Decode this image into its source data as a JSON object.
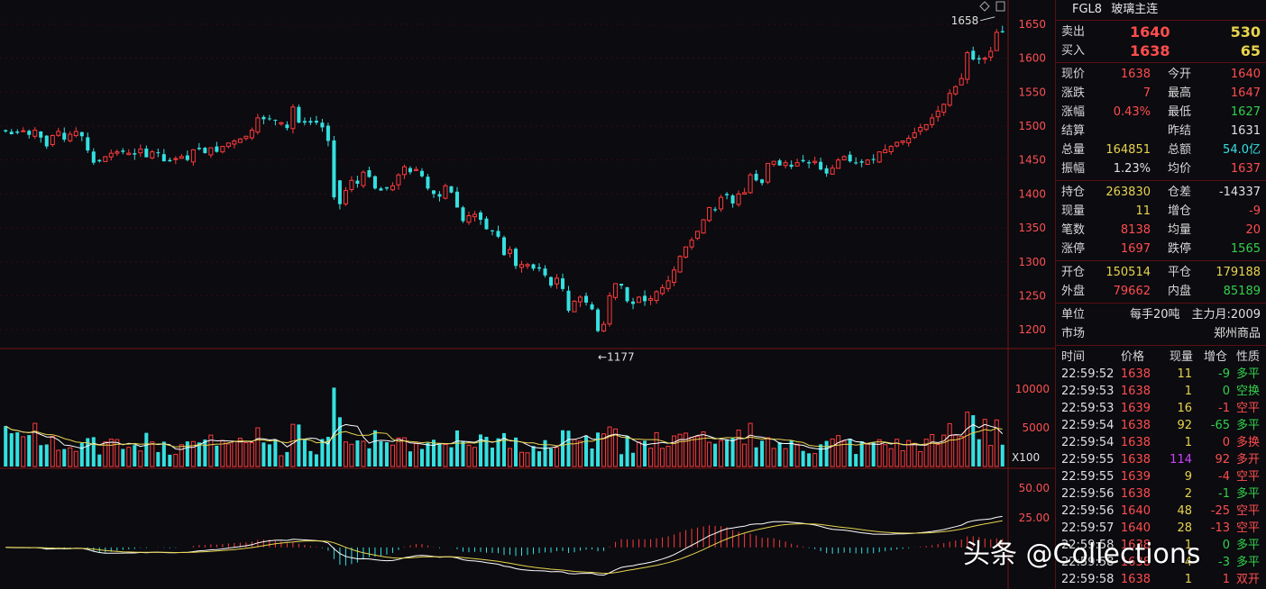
{
  "instrument": {
    "code": "FGL8",
    "name": "玻璃主连"
  },
  "quote": {
    "sell_label": "卖出",
    "sell_price": "1640",
    "sell_vol": "530",
    "buy_label": "买入",
    "buy_price": "1638",
    "buy_vol": "65"
  },
  "stats": [
    {
      "l1": "现价",
      "v1": "1638",
      "c1": "red",
      "l2": "今开",
      "v2": "1640",
      "c2": "red"
    },
    {
      "l1": "涨跌",
      "v1": "7",
      "c1": "red",
      "l2": "最高",
      "v2": "1647",
      "c2": "red"
    },
    {
      "l1": "涨幅",
      "v1": "0.43%",
      "c1": "red",
      "l2": "最低",
      "v2": "1627",
      "c2": "green"
    },
    {
      "l1": "结算",
      "v1": "",
      "c1": "white",
      "l2": "昨结",
      "v2": "1631",
      "c2": "white"
    },
    {
      "l1": "总量",
      "v1": "164851",
      "c1": "yellow",
      "l2": "总额",
      "v2": "54.0亿",
      "c2": "cyan"
    },
    {
      "l1": "振幅",
      "v1": "1.23%",
      "c1": "white",
      "l2": "均价",
      "v2": "1637",
      "c2": "red"
    }
  ],
  "stats2": [
    {
      "l1": "持仓",
      "v1": "263830",
      "c1": "yellow",
      "l2": "仓差",
      "v2": "-14337",
      "c2": "white"
    },
    {
      "l1": "现量",
      "v1": "11",
      "c1": "yellow",
      "l2": "增仓",
      "v2": "-9",
      "c2": "red"
    },
    {
      "l1": "笔数",
      "v1": "8138",
      "c1": "red",
      "l2": "均量",
      "v2": "20",
      "c2": "red"
    },
    {
      "l1": "涨停",
      "v1": "1697",
      "c1": "red",
      "l2": "跌停",
      "v2": "1565",
      "c2": "green"
    }
  ],
  "stats3": [
    {
      "l1": "开仓",
      "v1": "150514",
      "c1": "yellow",
      "l2": "平仓",
      "v2": "179188",
      "c2": "yellow"
    },
    {
      "l1": "外盘",
      "v1": "79662",
      "c1": "red",
      "l2": "内盘",
      "v2": "85189",
      "c2": "green"
    }
  ],
  "meta": {
    "unit_label": "单位",
    "unit_value": "每手20吨",
    "main_month": "主力月:2009",
    "market_label": "市场",
    "market_value": "郑州商品"
  },
  "ticks_header": {
    "time": "时间",
    "price": "价格",
    "vol": "现量",
    "oi": "增仓",
    "nature": "性质"
  },
  "ticks": [
    {
      "time": "22:59:52",
      "price": "1638",
      "pc": "red",
      "vol": "11",
      "vc": "yellow",
      "oi": "-9",
      "oc": "green",
      "nature": "多平",
      "nc": "green"
    },
    {
      "time": "22:59:53",
      "price": "1638",
      "pc": "red",
      "vol": "1",
      "vc": "yellow",
      "oi": "0",
      "oc": "green",
      "nature": "空换",
      "nc": "green"
    },
    {
      "time": "22:59:53",
      "price": "1639",
      "pc": "red",
      "vol": "16",
      "vc": "yellow",
      "oi": "-1",
      "oc": "red",
      "nature": "空平",
      "nc": "red"
    },
    {
      "time": "22:59:54",
      "price": "1638",
      "pc": "red",
      "vol": "92",
      "vc": "yellow",
      "oi": "-65",
      "oc": "green",
      "nature": "多平",
      "nc": "green"
    },
    {
      "time": "22:59:54",
      "price": "1638",
      "pc": "red",
      "vol": "1",
      "vc": "yellow",
      "oi": "0",
      "oc": "red",
      "nature": "多换",
      "nc": "red"
    },
    {
      "time": "22:59:55",
      "price": "1638",
      "pc": "red",
      "vol": "114",
      "vc": "magenta",
      "oi": "92",
      "oc": "red",
      "nature": "多开",
      "nc": "red"
    },
    {
      "time": "22:59:55",
      "price": "1639",
      "pc": "red",
      "vol": "9",
      "vc": "yellow",
      "oi": "-4",
      "oc": "red",
      "nature": "空平",
      "nc": "red"
    },
    {
      "time": "22:59:56",
      "price": "1638",
      "pc": "red",
      "vol": "2",
      "vc": "yellow",
      "oi": "-1",
      "oc": "green",
      "nature": "多平",
      "nc": "green"
    },
    {
      "time": "22:59:56",
      "price": "1640",
      "pc": "red",
      "vol": "48",
      "vc": "yellow",
      "oi": "-25",
      "oc": "red",
      "nature": "空平",
      "nc": "red"
    },
    {
      "time": "22:59:57",
      "price": "1640",
      "pc": "red",
      "vol": "28",
      "vc": "yellow",
      "oi": "-13",
      "oc": "red",
      "nature": "空平",
      "nc": "red"
    },
    {
      "time": "22:59:58",
      "price": "1638",
      "pc": "red",
      "vol": "1",
      "vc": "yellow",
      "oi": "0",
      "oc": "green",
      "nature": "多平",
      "nc": "green"
    },
    {
      "time": "22:59:58",
      "price": "1638",
      "pc": "red",
      "vol": "4",
      "vc": "yellow",
      "oi": "-3",
      "oc": "green",
      "nature": "多平",
      "nc": "green"
    },
    {
      "time": "22:59:58",
      "price": "1638",
      "pc": "red",
      "vol": "1",
      "vc": "yellow",
      "oi": "1",
      "oc": "red",
      "nature": "双开",
      "nc": "red"
    }
  ],
  "watermark": "头条 @Collections",
  "chart_data": {
    "type": "candlestick",
    "price_ticks": [
      1650,
      1600,
      1550,
      1500,
      1450,
      1400,
      1350,
      1300,
      1250,
      1200
    ],
    "price_range": [
      1175,
      1675
    ],
    "high_label": "1658",
    "low_label": "←1177",
    "high_value": 1658,
    "low_value": 1177,
    "volume_ticks": [
      "10000",
      "5000"
    ],
    "volume_range": [
      0,
      12000
    ],
    "volume_unit": "X100",
    "macd_ticks": [
      "50.00",
      "25.00"
    ],
    "macd_range": [
      -35,
      65
    ],
    "closes": [
      1492,
      1488,
      1490,
      1493,
      1487,
      1494,
      1483,
      1470,
      1486,
      1492,
      1480,
      1488,
      1492,
      1485,
      1464,
      1446,
      1448,
      1455,
      1460,
      1462,
      1462,
      1460,
      1458,
      1466,
      1454,
      1462,
      1460,
      1448,
      1448,
      1452,
      1455,
      1450,
      1465,
      1466,
      1460,
      1468,
      1462,
      1470,
      1475,
      1478,
      1481,
      1485,
      1494,
      1512,
      1510,
      1510,
      1508,
      1505,
      1497,
      1528,
      1505,
      1505,
      1505,
      1505,
      1498,
      1478,
      1395,
      1385,
      1405,
      1420,
      1415,
      1432,
      1425,
      1408,
      1405,
      1408,
      1412,
      1428,
      1440,
      1432,
      1436,
      1426,
      1408,
      1400,
      1396,
      1412,
      1402,
      1380,
      1360,
      1368,
      1370,
      1362,
      1348,
      1345,
      1337,
      1310,
      1318,
      1294,
      1296,
      1296,
      1290,
      1290,
      1280,
      1265,
      1276,
      1260,
      1228,
      1242,
      1248,
      1240,
      1230,
      1198,
      1208,
      1250,
      1268,
      1265,
      1242,
      1238,
      1248,
      1242,
      1246,
      1256,
      1262,
      1272,
      1288,
      1308,
      1322,
      1332,
      1345,
      1362,
      1380,
      1376,
      1395,
      1398,
      1386,
      1400,
      1402,
      1428,
      1420,
      1416,
      1445,
      1448,
      1442,
      1446,
      1440,
      1446,
      1448,
      1445,
      1448,
      1436,
      1430,
      1438,
      1450,
      1455,
      1448,
      1445,
      1446,
      1450,
      1450,
      1462,
      1465,
      1470,
      1476,
      1478,
      1482,
      1490,
      1498,
      1502,
      1512,
      1522,
      1532,
      1548,
      1558,
      1570,
      1608,
      1598,
      1598,
      1600,
      1610,
      1638,
      1638
    ]
  }
}
